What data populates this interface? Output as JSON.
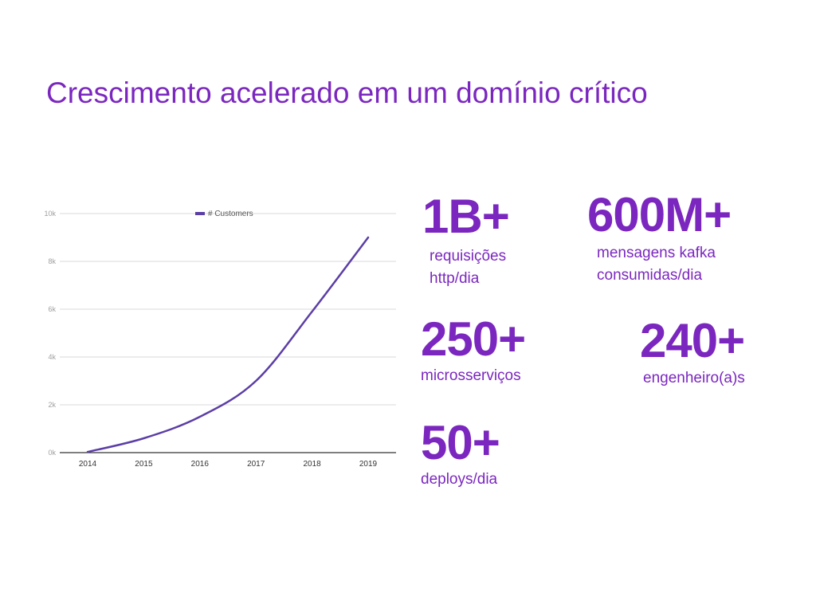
{
  "slide": {
    "title": "Crescimento acelerado em um domínio crítico"
  },
  "colors": {
    "accent": "#7b27bf",
    "series_line": "#5b3ea6",
    "grid": "#d9d9d9",
    "tick_text": "#9e9e9e"
  },
  "chart_data": {
    "type": "line",
    "legend_position": "top-center",
    "grid": true,
    "x": [
      2014,
      2015,
      2016,
      2017,
      2018,
      2019
    ],
    "x_tick_labels": [
      "2014",
      "2015",
      "2016",
      "2017",
      "2018",
      "2019"
    ],
    "y_tick_labels": [
      "0k",
      "2k",
      "4k",
      "6k",
      "8k",
      "10k"
    ],
    "ylim": [
      0,
      10000
    ],
    "series": [
      {
        "name": "# Customers",
        "values": [
          30,
          600,
          1500,
          3000,
          5900,
          9000
        ]
      }
    ]
  },
  "stats": [
    {
      "value": "1B+",
      "description": "requisições\nhttp/dia"
    },
    {
      "value": "600M+",
      "description": "mensagens kafka\nconsumidas/dia"
    },
    {
      "value": "250+",
      "description": "microsserviços"
    },
    {
      "value": "240+",
      "description": "engenheiro(a)s"
    },
    {
      "value": "50+",
      "description": "deploys/dia"
    }
  ]
}
